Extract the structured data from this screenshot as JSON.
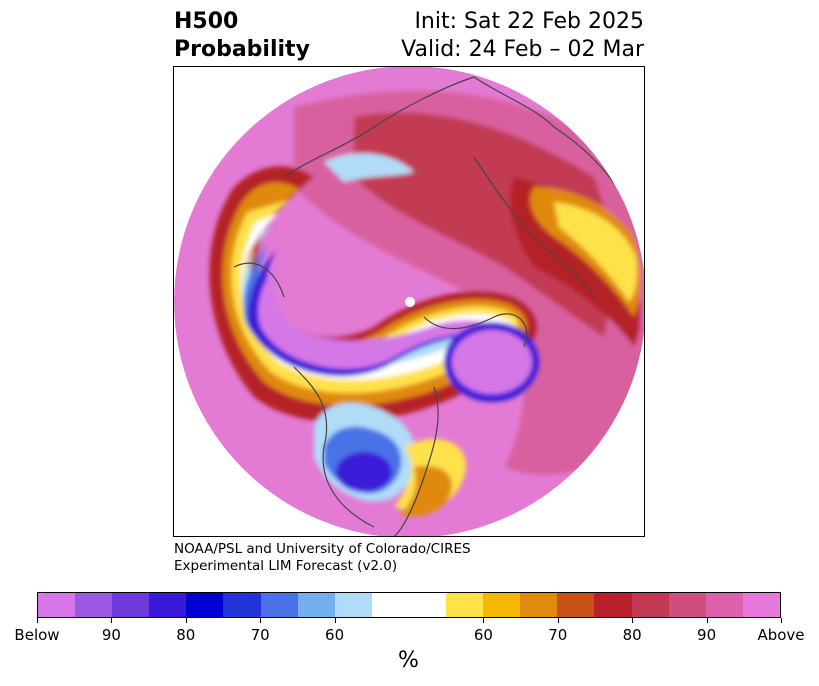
{
  "title": {
    "left_line1": "H500",
    "left_line2": "Probability",
    "right_line1": "Init: Sat 22 Feb 2025",
    "right_line2": "Valid: 24 Feb – 02 Mar"
  },
  "credit": {
    "line1": "NOAA/PSL and University of Colorado/CIRES",
    "line2": "Experimental LIM Forecast (v2.0)"
  },
  "colorbar": {
    "colors": [
      "#d677e8",
      "#9b59e3",
      "#6c3ad8",
      "#3a1ad8",
      "#0000d4",
      "#2234d8",
      "#4a72e6",
      "#74b0f0",
      "#b0dcf8",
      "#ffffff",
      "#ffe14a",
      "#f5b800",
      "#e08a10",
      "#c9521a",
      "#b8202a",
      "#c23a52",
      "#cd4f80",
      "#db62aa",
      "#e879dc"
    ],
    "tick_labels": [
      "Below",
      "90",
      "80",
      "70",
      "60",
      "60",
      "70",
      "80",
      "90",
      "Above"
    ],
    "unit": "%"
  },
  "map": {
    "projection": "north-polar-stereographic",
    "palette": {
      "above": "#e37bd5",
      "above_90": "#d9609f",
      "above_80": "#c23a52",
      "above_70": "#b52228",
      "above_60": "#e08a10",
      "above_50": "#ffe14a",
      "below": "#d677e8",
      "below_90": "#3a1ad8",
      "below_70": "#4a72e6",
      "below_60": "#b0dcf8",
      "coast": "#444444"
    }
  }
}
